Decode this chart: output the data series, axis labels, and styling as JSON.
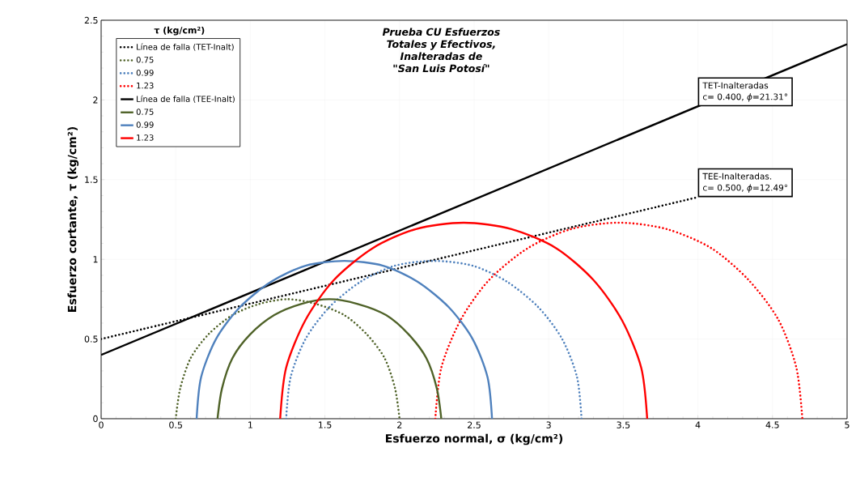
{
  "chart_data": {
    "type": "line",
    "title": "*Prueba CU Esfuerzos Totales y Efectivos, Inalteradas de \"San Luis Potosí\"*",
    "xlabel": "Esfuerzo normal, σ (kg/cm²)",
    "ylabel": "Esfuerzo cortante, τ (kg/cm²)",
    "legend_title": "τ (kg/cm²)",
    "legend": "top left",
    "grid": true,
    "marker": "none",
    "xlim": [
      0,
      5
    ],
    "ylim": [
      0,
      2.5
    ],
    "xticks": [
      0,
      0.5,
      1,
      1.5,
      2,
      2.5,
      3,
      3.5,
      4,
      4.5,
      5
    ],
    "yticks": [
      0,
      0.5,
      1,
      1.5,
      2,
      2.5
    ],
    "series": [
      {
        "name": "Línea de falla (TET-Inalt)",
        "color": "#000000",
        "line_style": "dotted",
        "x": [
          0,
          4
        ],
        "values": [
          0.5,
          1.39
        ]
      },
      {
        "name": "0.75",
        "color": "#4f6228",
        "line_style": "dotted",
        "x": [
          0.5,
          0.53,
          0.6,
          0.72,
          0.88,
          1.06,
          1.25,
          1.44,
          1.63,
          1.78,
          1.9,
          1.97,
          2.0
        ],
        "values": [
          0,
          0.19,
          0.38,
          0.53,
          0.65,
          0.72,
          0.75,
          0.72,
          0.65,
          0.53,
          0.38,
          0.19,
          0
        ]
      },
      {
        "name": "0.99",
        "color": "#4f81bd",
        "line_style": "dotted",
        "x": [
          1.24,
          1.27,
          1.37,
          1.53,
          1.74,
          1.97,
          2.23,
          2.49,
          2.72,
          2.93,
          3.09,
          3.19,
          3.22
        ],
        "values": [
          0,
          0.26,
          0.5,
          0.7,
          0.86,
          0.96,
          0.99,
          0.96,
          0.86,
          0.7,
          0.5,
          0.26,
          0
        ]
      },
      {
        "name": "1.23",
        "color": "#ff0000",
        "line_style": "dotted",
        "x": [
          2.24,
          2.28,
          2.41,
          2.6,
          2.86,
          3.15,
          3.47,
          3.79,
          4.09,
          4.34,
          4.54,
          4.66,
          4.7
        ],
        "values": [
          0,
          0.32,
          0.62,
          0.87,
          1.07,
          1.19,
          1.23,
          1.19,
          1.07,
          0.87,
          0.62,
          0.32,
          0
        ]
      },
      {
        "name": "Línea de falla (TEE-Inalt)",
        "color": "#000000",
        "line_style": "solid",
        "x": [
          0,
          5
        ],
        "values": [
          0.4,
          2.35
        ]
      },
      {
        "name": "0.75",
        "color": "#4f6228",
        "line_style": "solid",
        "x": [
          0.78,
          0.81,
          0.88,
          1.0,
          1.16,
          1.34,
          1.53,
          1.72,
          1.91,
          2.06,
          2.18,
          2.25,
          2.28
        ],
        "values": [
          0,
          0.19,
          0.38,
          0.53,
          0.65,
          0.72,
          0.75,
          0.72,
          0.65,
          0.53,
          0.38,
          0.19,
          0
        ]
      },
      {
        "name": "0.99",
        "color": "#4f81bd",
        "line_style": "solid",
        "x": [
          0.64,
          0.67,
          0.77,
          0.93,
          1.14,
          1.37,
          1.63,
          1.89,
          2.12,
          2.33,
          2.49,
          2.59,
          2.62
        ],
        "values": [
          0,
          0.26,
          0.5,
          0.7,
          0.86,
          0.96,
          0.99,
          0.96,
          0.86,
          0.7,
          0.5,
          0.26,
          0
        ]
      },
      {
        "name": "1.23",
        "color": "#ff0000",
        "line_style": "solid",
        "x": [
          1.2,
          1.24,
          1.37,
          1.56,
          1.82,
          2.11,
          2.43,
          2.75,
          3.05,
          3.3,
          3.49,
          3.62,
          3.66
        ],
        "values": [
          0,
          0.32,
          0.62,
          0.87,
          1.07,
          1.19,
          1.23,
          1.19,
          1.07,
          0.87,
          0.62,
          0.32,
          0
        ]
      }
    ],
    "annotations": [
      {
        "text": "TET-Inalteradas",
        "x": 4,
        "y": 1.96
      },
      "c= 0.400, *ϕ*=21.31°",
      {
        "text": "TEE-Inalteradas.",
        "x": 4,
        "y": 1.39
      },
      "c= 0.500, *ϕ*=12.49°"
    ]
  }
}
